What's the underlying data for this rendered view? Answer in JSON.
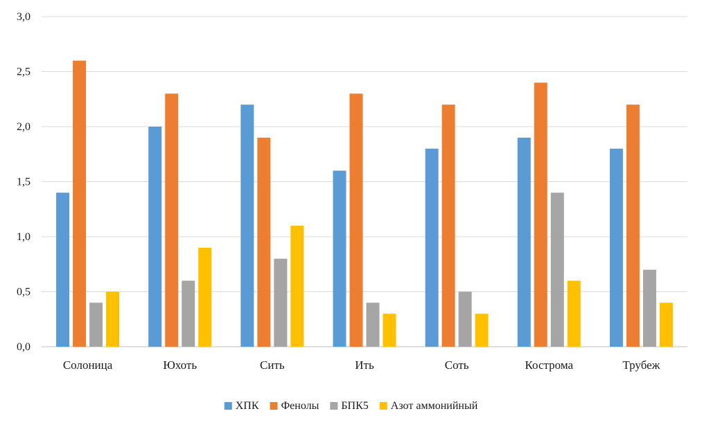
{
  "chart_data": {
    "type": "bar",
    "title": "",
    "xlabel": "",
    "ylabel": "",
    "categories": [
      "Солоница",
      "Юхоть",
      "Сить",
      "Ить",
      "Соть",
      "Кострома",
      "Трубеж"
    ],
    "series": [
      {
        "name": "ХПК",
        "color": "#5b9bd5",
        "values": [
          1.4,
          2.0,
          2.2,
          1.6,
          1.8,
          1.9,
          1.8
        ]
      },
      {
        "name": "Фенолы",
        "color": "#ed7d31",
        "values": [
          2.6,
          2.3,
          1.9,
          2.3,
          2.2,
          2.4,
          2.2
        ]
      },
      {
        "name": "БПК5",
        "color": "#a5a5a5",
        "values": [
          0.4,
          0.6,
          0.8,
          0.4,
          0.5,
          1.4,
          0.7
        ]
      },
      {
        "name": "Азот аммонийный",
        "color": "#ffc000",
        "values": [
          0.5,
          0.9,
          1.1,
          0.3,
          0.3,
          0.6,
          0.4
        ]
      }
    ],
    "ylim": [
      0,
      3.0
    ],
    "yticks": [
      0.0,
      0.5,
      1.0,
      1.5,
      2.0,
      2.5,
      3.0
    ],
    "ytick_labels": [
      "0,0",
      "0,5",
      "1,0",
      "1,5",
      "2,0",
      "2,5",
      "3,0"
    ],
    "grid": true,
    "legend_position": "bottom"
  }
}
